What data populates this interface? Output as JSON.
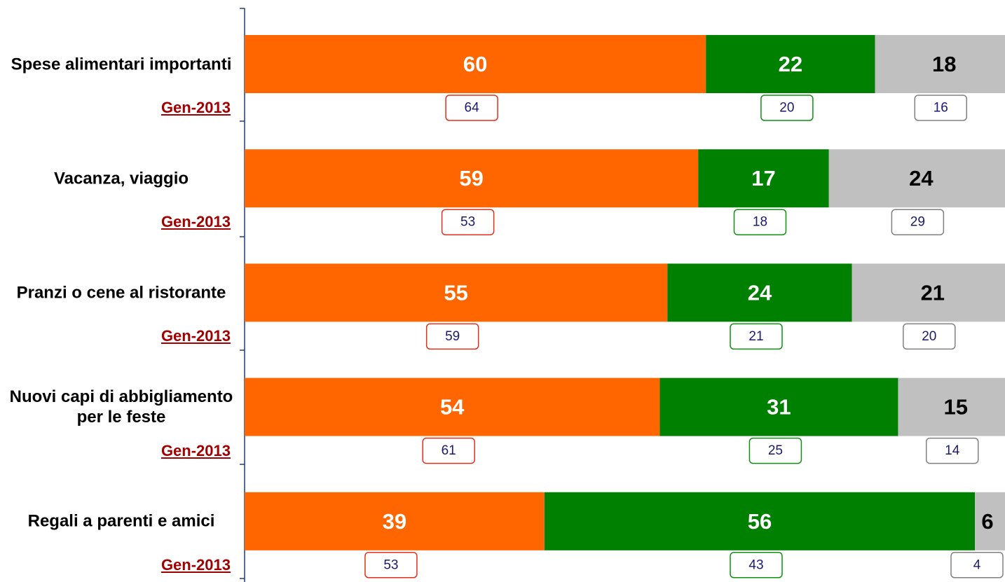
{
  "chart_data": {
    "type": "bar",
    "orientation": "horizontal",
    "stacked": true,
    "categories": [
      "Spese alimentari importanti",
      "Vacanza, viaggio",
      "Pranzi o cene al ristorante",
      "Nuovi capi di abbigliamento per le feste",
      "Regali a parenti e amici"
    ],
    "comparison_label": "Gen-2013",
    "series": [
      {
        "color": "#ff6600",
        "label_color": "#ffffff",
        "box_color": "#e0301e",
        "values": [
          60,
          59,
          55,
          54,
          39
        ],
        "comparison": [
          64,
          53,
          59,
          61,
          53
        ]
      },
      {
        "color": "#008000",
        "label_color": "#ffffff",
        "box_color": "#109010",
        "values": [
          22,
          17,
          24,
          31,
          56
        ],
        "comparison": [
          20,
          18,
          21,
          25,
          43
        ]
      },
      {
        "color": "#c0c0c0",
        "label_color": "#000000",
        "box_color": "#808080",
        "values": [
          18,
          24,
          21,
          15,
          6
        ],
        "comparison": [
          16,
          29,
          20,
          14,
          4
        ]
      }
    ]
  }
}
